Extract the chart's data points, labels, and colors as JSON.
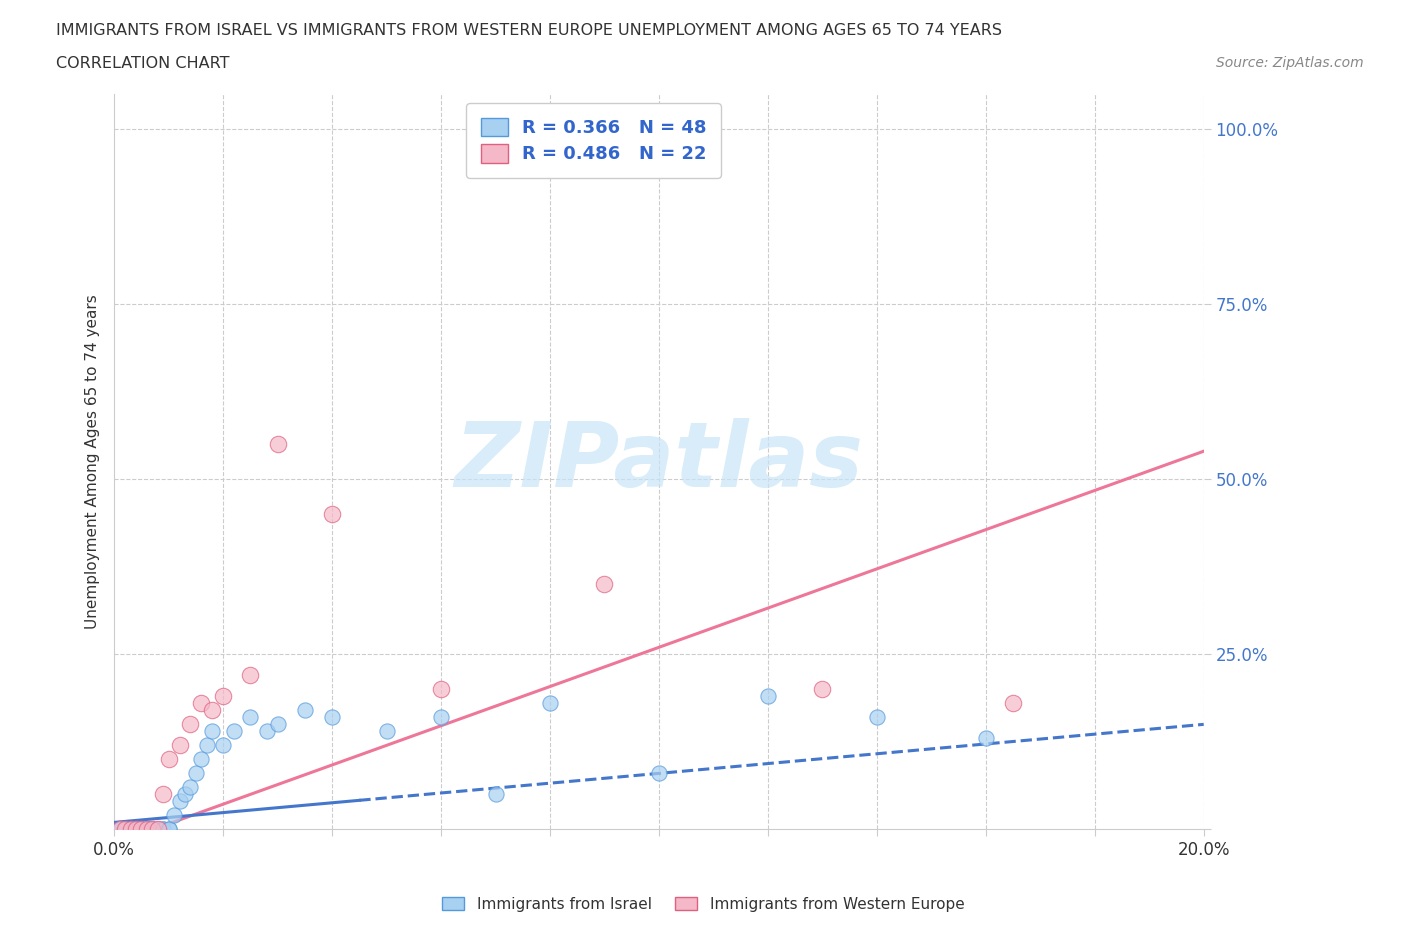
{
  "title_line1": "IMMIGRANTS FROM ISRAEL VS IMMIGRANTS FROM WESTERN EUROPE UNEMPLOYMENT AMONG AGES 65 TO 74 YEARS",
  "title_line2": "CORRELATION CHART",
  "source_text": "Source: ZipAtlas.com",
  "ylabel": "Unemployment Among Ages 65 to 74 years",
  "xlim": [
    0.0,
    0.2
  ],
  "ylim": [
    0.0,
    1.05
  ],
  "israel_R": 0.366,
  "israel_N": 48,
  "western_europe_R": 0.486,
  "western_europe_N": 22,
  "israel_color": "#A8D0F0",
  "israel_edge_color": "#5599DD",
  "western_europe_color": "#F5B8C8",
  "western_europe_edge_color": "#E06080",
  "israel_line_color": "#4477CC",
  "western_europe_line_color": "#EE7799",
  "watermark_color": "#C8E4F8",
  "background_color": "#FFFFFF",
  "grid_color": "#CCCCCC",
  "israel_x": [
    0.001,
    0.001,
    0.001,
    0.002,
    0.002,
    0.002,
    0.003,
    0.003,
    0.003,
    0.004,
    0.004,
    0.004,
    0.005,
    0.005,
    0.005,
    0.006,
    0.006,
    0.007,
    0.007,
    0.008,
    0.008,
    0.009,
    0.009,
    0.01,
    0.01,
    0.011,
    0.012,
    0.013,
    0.014,
    0.015,
    0.016,
    0.017,
    0.018,
    0.02,
    0.022,
    0.025,
    0.028,
    0.03,
    0.035,
    0.04,
    0.05,
    0.06,
    0.07,
    0.08,
    0.1,
    0.12,
    0.14,
    0.16
  ],
  "israel_y": [
    0.0,
    0.0,
    0.0,
    0.0,
    0.0,
    0.0,
    0.0,
    0.0,
    0.0,
    0.0,
    0.0,
    0.0,
    0.0,
    0.0,
    0.0,
    0.0,
    0.0,
    0.0,
    0.0,
    0.0,
    0.0,
    0.0,
    0.0,
    0.0,
    0.0,
    0.02,
    0.04,
    0.05,
    0.06,
    0.08,
    0.1,
    0.12,
    0.14,
    0.12,
    0.14,
    0.16,
    0.14,
    0.15,
    0.17,
    0.16,
    0.14,
    0.16,
    0.05,
    0.18,
    0.08,
    0.19,
    0.16,
    0.13
  ],
  "western_europe_x": [
    0.001,
    0.002,
    0.003,
    0.004,
    0.005,
    0.006,
    0.007,
    0.008,
    0.009,
    0.01,
    0.012,
    0.014,
    0.016,
    0.018,
    0.02,
    0.025,
    0.03,
    0.04,
    0.06,
    0.09,
    0.13,
    0.165
  ],
  "western_europe_y": [
    0.0,
    0.0,
    0.0,
    0.0,
    0.0,
    0.0,
    0.0,
    0.0,
    0.05,
    0.1,
    0.12,
    0.15,
    0.18,
    0.17,
    0.19,
    0.22,
    0.55,
    0.45,
    0.2,
    0.35,
    0.2,
    0.18
  ]
}
